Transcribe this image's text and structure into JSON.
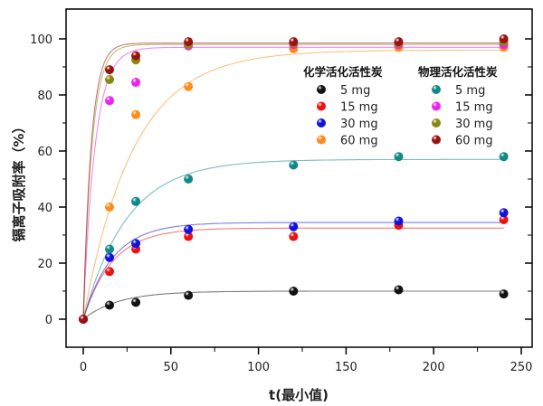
{
  "chart_data": {
    "type": "scatter",
    "xlabel": "t(最小值)",
    "ylabel": "镉离子吸附率（%）",
    "xlim": [
      -10,
      252
    ],
    "ylim": [
      -10,
      109
    ],
    "xticks": [
      0,
      50,
      100,
      150,
      200,
      250
    ],
    "yticks": [
      0,
      20,
      40,
      60,
      80,
      100
    ],
    "grid": false,
    "legend_position": "right-middle",
    "legend_groups": [
      {
        "title": "化学活化活性炭",
        "series_indices": [
          0,
          1,
          2,
          3
        ]
      },
      {
        "title": "物理活化活性炭",
        "series_indices": [
          4,
          5,
          6,
          7
        ]
      }
    ],
    "x": [
      0,
      15,
      30,
      60,
      120,
      180,
      240
    ],
    "series": [
      {
        "name": "5 mg",
        "color": "#111111",
        "values": [
          0,
          5,
          6,
          8.5,
          10,
          10.5,
          9
        ],
        "fit": {
          "qe": 10,
          "k": 0.05
        }
      },
      {
        "name": "15 mg",
        "color": "#ee1111",
        "values": [
          0,
          17,
          25,
          29.5,
          29.5,
          33.5,
          35.5
        ],
        "fit": {
          "qe": 32.5,
          "k": 0.06
        }
      },
      {
        "name": "30 mg",
        "color": "#1111dd",
        "values": [
          0,
          22,
          27,
          32,
          33,
          35,
          38
        ],
        "fit": {
          "qe": 34.5,
          "k": 0.06
        }
      },
      {
        "name": "60 mg",
        "color": "#ff8c1a",
        "values": [
          0,
          40,
          73,
          83,
          96.5,
          97,
          97
        ],
        "fit": {
          "qe": 96,
          "k": 0.035
        }
      },
      {
        "name": "5 mg",
        "color": "#118888",
        "values": [
          0,
          25,
          42,
          50,
          55,
          58,
          58
        ],
        "fit": {
          "qe": 57,
          "k": 0.04
        }
      },
      {
        "name": "15 mg",
        "color": "#ee22ee",
        "values": [
          0,
          78,
          84.5,
          97.5,
          98,
          98,
          98
        ],
        "fit": {
          "qe": 97,
          "k": 0.15
        }
      },
      {
        "name": "30 mg",
        "color": "#888811",
        "values": [
          0,
          85.5,
          92.5,
          98,
          98.5,
          98.5,
          99
        ],
        "fit": {
          "qe": 98,
          "k": 0.2
        }
      },
      {
        "name": "60 mg",
        "color": "#991111",
        "values": [
          0,
          89,
          94,
          99,
          99,
          99,
          100
        ],
        "fit": {
          "qe": 98.5,
          "k": 0.22
        }
      }
    ]
  }
}
